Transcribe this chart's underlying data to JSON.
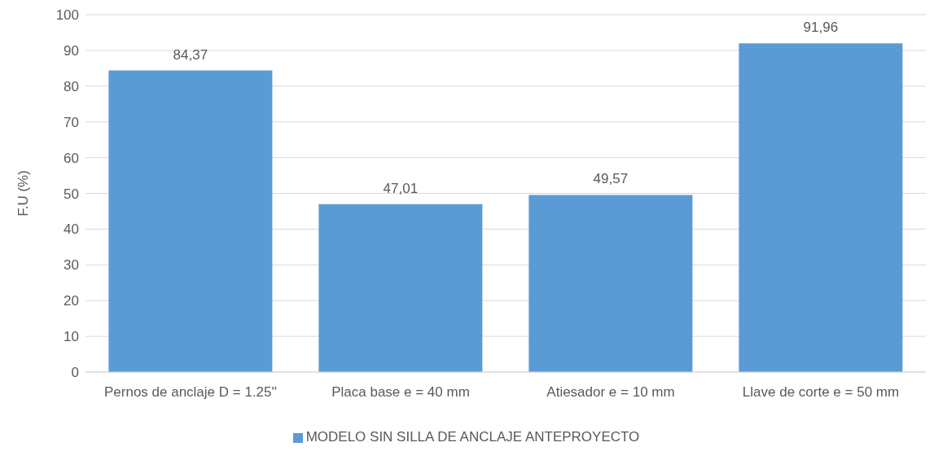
{
  "chart_data": {
    "type": "bar",
    "ylabel": "F.U (%)",
    "categories": [
      "Pernos de anclaje D = 1.25''",
      "Placa base e = 40 mm",
      "Atiesador e = 10 mm",
      "Llave de corte e = 50 mm"
    ],
    "series": [
      {
        "name": "MODELO SIN SILLA DE ANCLAJE ANTEPROYECTO",
        "color": "#5b9bd5",
        "values": [
          84.37,
          47.01,
          49.57,
          91.96
        ],
        "value_labels": [
          "84,37",
          "47,01",
          "49,57",
          "91,96"
        ]
      }
    ],
    "ylim": [
      0,
      100
    ],
    "yticks": [
      0,
      10,
      20,
      30,
      40,
      50,
      60,
      70,
      80,
      90,
      100
    ],
    "grid": "y",
    "legend": "bottom"
  }
}
